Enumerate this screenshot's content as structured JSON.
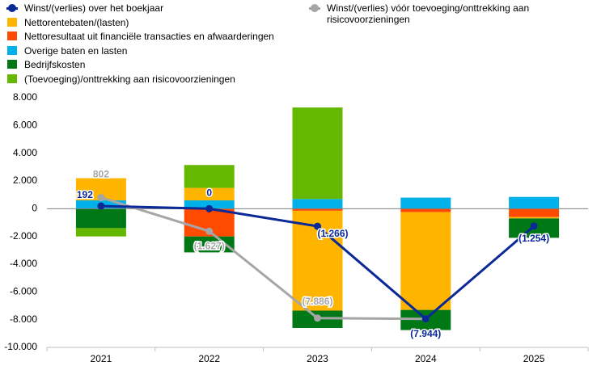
{
  "chart_data": {
    "type": "bar",
    "stacked": true,
    "categories": [
      "2021",
      "2022",
      "2023",
      "2024",
      "2025"
    ],
    "ylim": [
      -10000,
      8000
    ],
    "yticks": [
      {
        "value": -10000,
        "label": "-10.000"
      },
      {
        "value": -8000,
        "label": "-8.000"
      },
      {
        "value": -6000,
        "label": "-6.000"
      },
      {
        "value": -4000,
        "label": "-4.000"
      },
      {
        "value": -2000,
        "label": "-2.000"
      },
      {
        "value": 0,
        "label": "0"
      },
      {
        "value": 2000,
        "label": "2.000"
      },
      {
        "value": 4000,
        "label": "4.000"
      },
      {
        "value": 6000,
        "label": "6.000"
      },
      {
        "value": 8000,
        "label": "8.000"
      }
    ],
    "series": [
      {
        "name": "Winst/(verlies) over het boekjaar",
        "type": "line",
        "color": "#0a2896",
        "values": [
          192,
          0,
          -1266,
          -7944,
          -1254
        ],
        "value_labels": [
          "192",
          "0",
          "(1.266)",
          "(7.944)",
          "(1.254)"
        ]
      },
      {
        "name": "Nettorentebaten/(lasten)",
        "type": "bar",
        "color": "#ffb400",
        "values": [
          1600,
          900,
          -7200,
          -7050,
          -100
        ]
      },
      {
        "name": "Nettoresultaat uit financiële transacties en afwaarderingen",
        "type": "bar",
        "color": "#ff4b00",
        "values": [
          0,
          -2000,
          -150,
          -250,
          -600
        ]
      },
      {
        "name": "Overige baten en lasten",
        "type": "bar",
        "color": "#00b1ea",
        "values": [
          600,
          600,
          700,
          800,
          850
        ]
      },
      {
        "name": "Bedrijfskosten",
        "type": "bar",
        "color": "#007816",
        "values": [
          -1400,
          -1150,
          -1250,
          -1450,
          -1400
        ]
      },
      {
        "name": "(Toevoeging)/onttrekking aan risicovoorzieningen",
        "type": "bar",
        "color": "#65b800",
        "values": [
          -600,
          1650,
          6600,
          0,
          0
        ]
      },
      {
        "name": "Winst/(verlies) vóór toevoeging/onttrekking aan risicovoorzieningen",
        "type": "line",
        "color": "#a6a6a6",
        "values": [
          802,
          -1627,
          -7886,
          -7944,
          null
        ],
        "value_labels": [
          "802",
          "(1.627)",
          "(7.886)",
          null,
          null
        ]
      }
    ]
  }
}
